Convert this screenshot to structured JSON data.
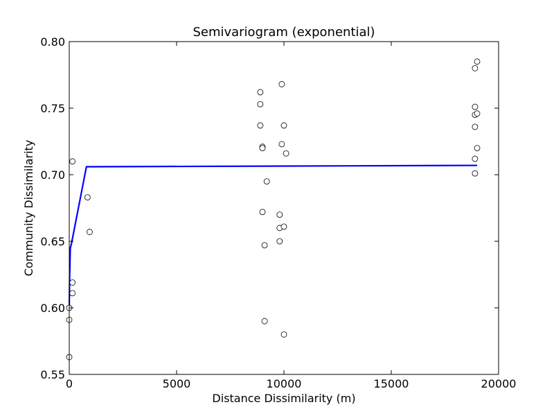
{
  "chart_data": {
    "type": "scatter",
    "title": "Semivariogram (exponential)",
    "xlabel": "Distance Dissimilarity (m)",
    "ylabel": "Community Dissimilarity",
    "xlim": [
      0,
      20000
    ],
    "ylim": [
      0.55,
      0.8
    ],
    "grid": false,
    "x_ticks": [
      0,
      5000,
      10000,
      15000,
      20000
    ],
    "x_tick_labels": [
      "0",
      "5000",
      "10000",
      "15000",
      "20000"
    ],
    "y_ticks": [
      0.55,
      0.6,
      0.65,
      0.7,
      0.75,
      0.8
    ],
    "y_tick_labels": [
      "0.55",
      "0.60",
      "0.65",
      "0.70",
      "0.75",
      "0.80"
    ],
    "colors": {
      "model_line": "#0000ff",
      "points_edge": "#000000",
      "points_fill": "#ffffff"
    },
    "series": [
      {
        "kind": "scatter",
        "points": [
          [
            0,
            0.563
          ],
          [
            0,
            0.591
          ],
          [
            0,
            0.6
          ],
          [
            150,
            0.611
          ],
          [
            150,
            0.619
          ],
          [
            150,
            0.71
          ],
          [
            850,
            0.683
          ],
          [
            950,
            0.657
          ],
          [
            8900,
            0.762
          ],
          [
            8900,
            0.753
          ],
          [
            8900,
            0.737
          ],
          [
            9000,
            0.721
          ],
          [
            9000,
            0.72
          ],
          [
            9000,
            0.672
          ],
          [
            9100,
            0.647
          ],
          [
            9100,
            0.59
          ],
          [
            9200,
            0.695
          ],
          [
            9800,
            0.67
          ],
          [
            9800,
            0.66
          ],
          [
            9800,
            0.65
          ],
          [
            9900,
            0.768
          ],
          [
            9900,
            0.723
          ],
          [
            10000,
            0.737
          ],
          [
            10000,
            0.661
          ],
          [
            10000,
            0.58
          ],
          [
            10100,
            0.716
          ],
          [
            18900,
            0.78
          ],
          [
            18900,
            0.751
          ],
          [
            18900,
            0.745
          ],
          [
            18900,
            0.736
          ],
          [
            18900,
            0.712
          ],
          [
            18900,
            0.701
          ],
          [
            19000,
            0.785
          ],
          [
            19000,
            0.746
          ],
          [
            19000,
            0.72
          ]
        ]
      },
      {
        "kind": "line",
        "points": [
          [
            0,
            0.6
          ],
          [
            20,
            0.625
          ],
          [
            50,
            0.645
          ],
          [
            100,
            0.648
          ],
          [
            800,
            0.706
          ],
          [
            19000,
            0.707
          ]
        ]
      }
    ]
  }
}
